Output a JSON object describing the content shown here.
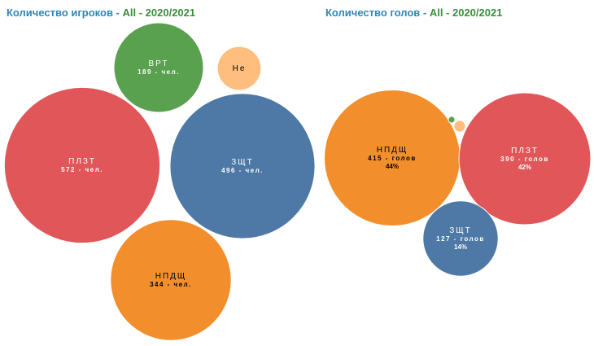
{
  "charts": [
    {
      "title_main": "Количество игроков",
      "title_sep": " - ",
      "title_sub": "All - 2020/2021",
      "chart_data": {
        "type": "bubble",
        "title": "Количество игроков - All - 2020/2021",
        "unit": "чел.",
        "bubbles": [
          {
            "name": "ПЛЗТ",
            "value": 572,
            "label": "572 - чел.",
            "pct": "",
            "color": "#e15759",
            "text_color": "#ffffff"
          },
          {
            "name": "ЗЩТ",
            "value": 496,
            "label": "496 - чел.",
            "pct": "",
            "color": "#4e79a7",
            "text_color": "#ffffff"
          },
          {
            "name": "НПДЩ",
            "value": 344,
            "label": "344 - чел.",
            "pct": "",
            "color": "#f28e2b",
            "text_color": "#000000"
          },
          {
            "name": "ВРТ",
            "value": 189,
            "label": "189 - чел.",
            "pct": "",
            "color": "#59a14f",
            "text_color": "#ffffff"
          },
          {
            "name": "Не",
            "value": 45,
            "label": "",
            "pct": "",
            "color": "#ffbe7d",
            "text_color": "#000000"
          }
        ]
      }
    },
    {
      "title_main": "Количество голов",
      "title_sep": " - ",
      "title_sub": "All - 2020/2021",
      "chart_data": {
        "type": "bubble",
        "title": "Количество голов - All - 2020/2021",
        "unit": "голов",
        "bubbles": [
          {
            "name": "НПДЩ",
            "value": 415,
            "label": "415 - голов",
            "pct": "44%",
            "color": "#f28e2b",
            "text_color": "#000000"
          },
          {
            "name": "ПЛЗТ",
            "value": 390,
            "label": "390 - голов",
            "pct": "42%",
            "color": "#e15759",
            "text_color": "#ffffff"
          },
          {
            "name": "ЗЩТ",
            "value": 127,
            "label": "127 - голов",
            "pct": "14%",
            "color": "#4e79a7",
            "text_color": "#ffffff"
          },
          {
            "name": "",
            "value": 3,
            "label": "",
            "pct": "",
            "color": "#ffbe7d",
            "text_color": "#000000"
          },
          {
            "name": "",
            "value": 1,
            "label": "",
            "pct": "",
            "color": "#59a14f",
            "text_color": "#000000"
          }
        ]
      }
    }
  ]
}
